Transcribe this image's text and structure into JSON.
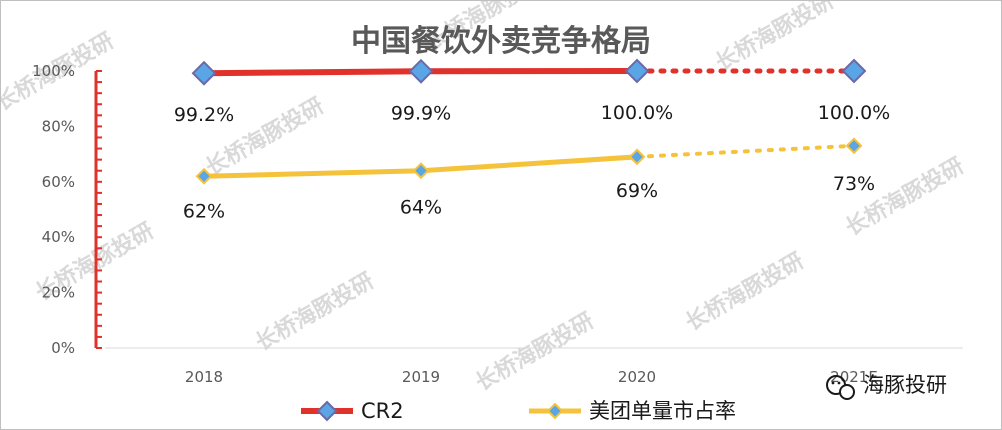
{
  "chart_data": {
    "type": "line",
    "title": "中国餐饮外卖竞争格局",
    "categories": [
      "2018",
      "2019",
      "2020",
      "2021E"
    ],
    "yticks": [
      "0%",
      "20%",
      "40%",
      "60%",
      "80%",
      "100%"
    ],
    "ylim": [
      0,
      100
    ],
    "grid": false,
    "legend_position": "bottom",
    "series": [
      {
        "name": "CR2",
        "values": [
          99.2,
          99.9,
          100.0,
          100.0
        ],
        "labels": [
          "99.2%",
          "99.9%",
          "100.0%",
          "100.0%"
        ],
        "color": "#e0312a",
        "projected_from_index": 2
      },
      {
        "name": "美团单量市占率",
        "values": [
          62,
          64,
          69,
          73
        ],
        "labels": [
          "62%",
          "64%",
          "69%",
          "73%"
        ],
        "color": "#f5c33b",
        "projected_from_index": 2
      }
    ],
    "marker_color": "#5aa5e6",
    "marker_border": "#6a6aa8"
  },
  "watermark": "长桥海豚投研",
  "brand": {
    "label": "海豚投研",
    "icon": "wechat-icon"
  }
}
